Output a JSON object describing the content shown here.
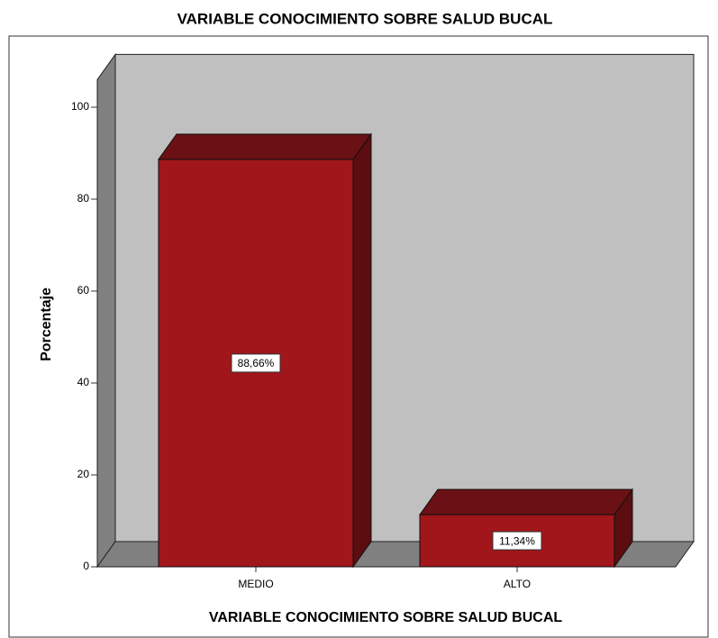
{
  "chart_data": {
    "type": "bar3d",
    "title": "VARIABLE CONOCIMIENTO SOBRE SALUD BUCAL",
    "x_label": "VARIABLE CONOCIMIENTO SOBRE SALUD BUCAL",
    "y_label": "Porcentaje",
    "categories": [
      "MEDIO",
      "ALTO"
    ],
    "values": [
      88.66,
      11.34
    ],
    "value_labels": [
      "88,66%",
      "11,34%"
    ],
    "color": "#a0161a",
    "ylim": [
      0,
      106
    ],
    "yticks": [
      0,
      20,
      40,
      60,
      80,
      100
    ]
  }
}
